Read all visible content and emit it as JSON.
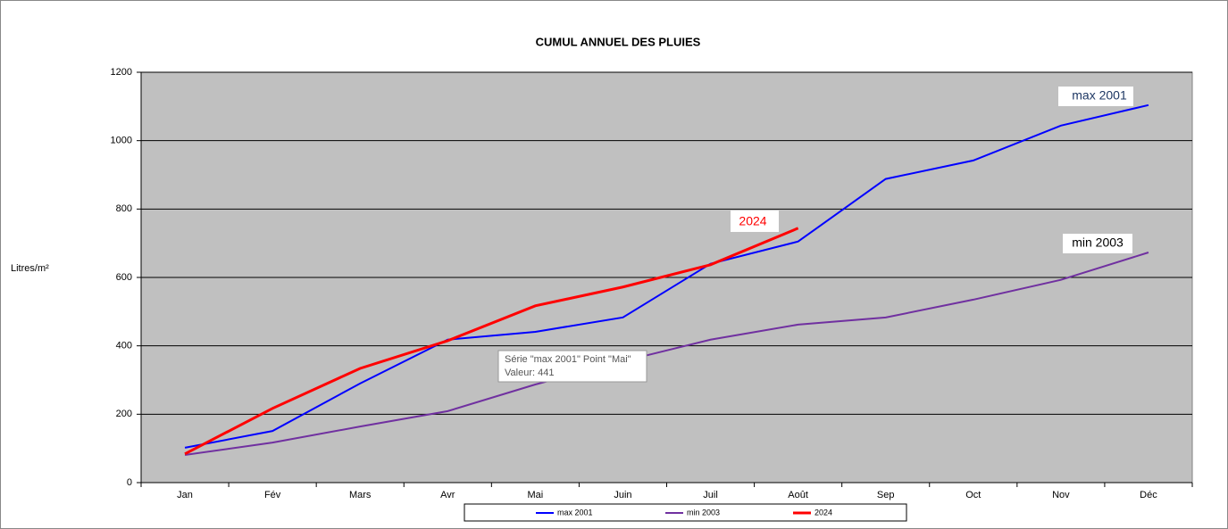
{
  "chart_data": {
    "type": "line",
    "title": "CUMUL ANNUEL DES PLUIES",
    "y_label": "Litres/m²",
    "categories": [
      "Jan",
      "Fév",
      "Mars",
      "Avr",
      "Mai",
      "Juin",
      "Juil",
      "Août",
      "Sep",
      "Oct",
      "Nov",
      "Déc"
    ],
    "series": [
      {
        "name": "max 2001",
        "color": "#0000ff",
        "values": [
          102,
          151,
          290,
          418,
          441,
          483,
          640,
          705,
          888,
          942,
          1044,
          1104
        ]
      },
      {
        "name": "min 2003",
        "color": "#7030a0",
        "values": [
          81,
          117,
          164,
          209,
          287,
          355,
          418,
          462,
          483,
          535,
          593,
          673
        ]
      },
      {
        "name": "2024",
        "color": "#ff0000",
        "values": [
          84,
          217,
          334,
          415,
          517,
          572,
          637,
          744,
          null,
          null,
          null,
          null
        ]
      }
    ],
    "ylim": [
      0,
      1200
    ],
    "yticks": [
      0,
      200,
      400,
      600,
      800,
      1000,
      1200
    ],
    "grid": true,
    "legend": "bottom",
    "annotations": [
      "max 2001",
      "min 2003",
      "2024"
    ],
    "tooltip": [
      "Série \"max 2001\" Point \"Mai\"",
      "Valeur: 441"
    ]
  }
}
